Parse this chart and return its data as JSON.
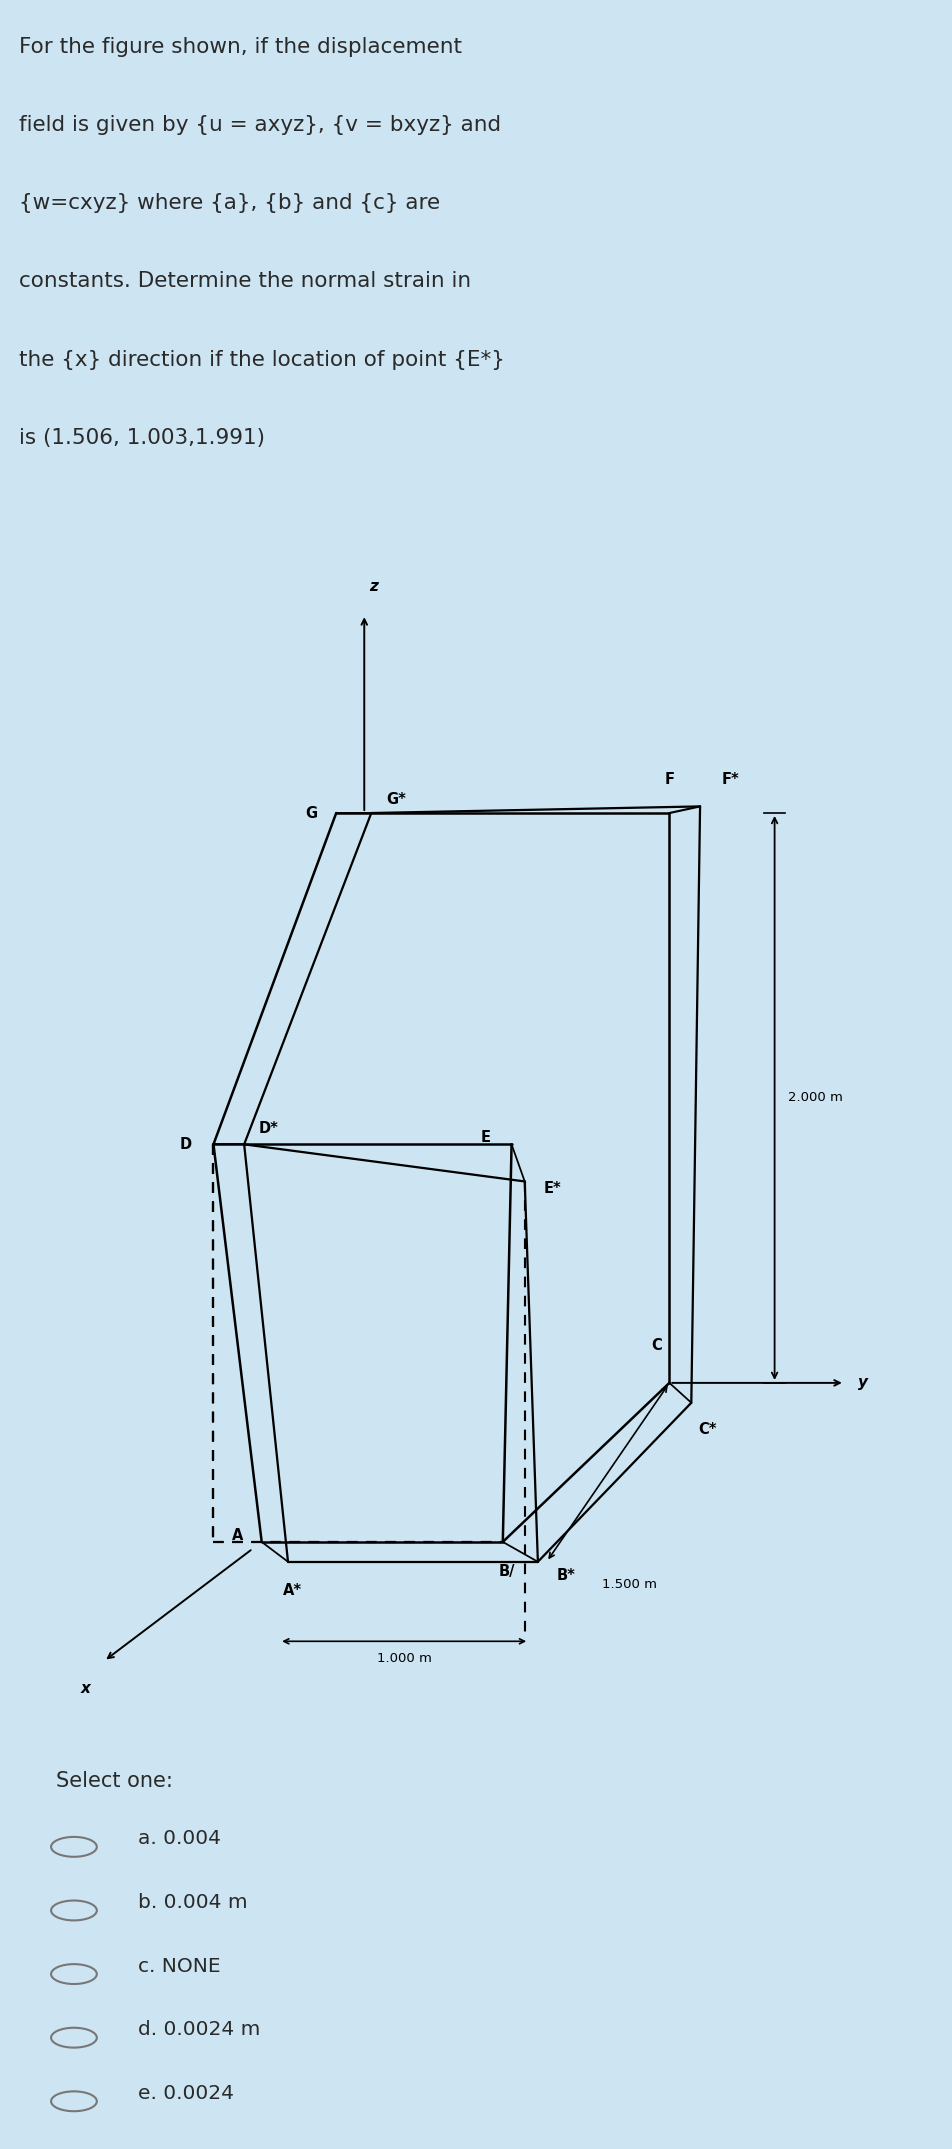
{
  "bg_color": "#cde5f2",
  "white_box_color": "#ffffff",
  "text_color": "#2a2a2a",
  "question_lines": [
    "For the figure shown, if the displacement",
    "field is given by {u = axyz}, {v = bxyz} and",
    "{w=cxyz} where {a}, {b} and {c} are",
    "constants. Determine the normal strain in",
    "the {x} direction if the location of point {E*}",
    "is (1.506, 1.003,1.991)"
  ],
  "select_one_text": "Select one:",
  "options": [
    "a. 0.004",
    "b. 0.004 m",
    "c. NONE",
    "d. 0.0024 m",
    "e. 0.0024"
  ],
  "dim_2000": "2.000 m",
  "dim_1500": "1.500 m",
  "dim_1000": "1.000 m"
}
